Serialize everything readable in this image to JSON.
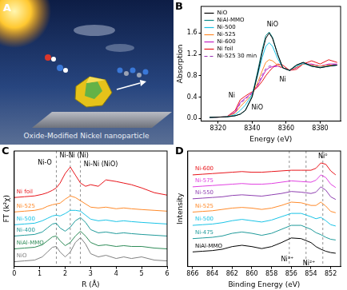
{
  "panel_a": {
    "title": "A",
    "caption": "Oxide-Modified Nickel nanoparticle"
  },
  "chart_data": [
    {
      "type": "line",
      "title": "B",
      "x_label": "Energy (eV)",
      "y_label": "Absorption",
      "x": [
        8315,
        8325,
        8330,
        8333,
        8336,
        8340,
        8343,
        8346,
        8348,
        8350,
        8352,
        8355,
        8358,
        8362,
        8366,
        8370,
        8375,
        8380,
        8385,
        8390
      ],
      "series": [
        {
          "name": "NiO",
          "color": "#000000",
          "line_style": "solid",
          "values": [
            0.02,
            0.03,
            0.05,
            0.08,
            0.15,
            0.4,
            0.8,
            1.25,
            1.5,
            1.6,
            1.5,
            1.2,
            0.95,
            0.9,
            1.0,
            1.05,
            0.98,
            0.95,
            0.98,
            1.0
          ]
        },
        {
          "name": "NiAl-MMO",
          "color": "#0f8c8c",
          "line_style": "solid",
          "values": [
            0.02,
            0.03,
            0.05,
            0.08,
            0.15,
            0.42,
            0.85,
            1.3,
            1.55,
            1.62,
            1.52,
            1.2,
            0.95,
            0.9,
            1.0,
            1.05,
            0.98,
            0.95,
            0.98,
            1.0
          ]
        },
        {
          "name": "Ni-500",
          "color": "#19c3e6",
          "line_style": "solid",
          "values": [
            0.02,
            0.03,
            0.07,
            0.15,
            0.25,
            0.45,
            0.78,
            1.15,
            1.35,
            1.42,
            1.35,
            1.12,
            0.95,
            0.9,
            0.98,
            1.03,
            0.98,
            0.96,
            0.98,
            1.0
          ]
        },
        {
          "name": "Ni-525",
          "color": "#ff8a2a",
          "line_style": "solid",
          "values": [
            0.02,
            0.03,
            0.1,
            0.22,
            0.32,
            0.45,
            0.65,
            0.9,
            1.05,
            1.1,
            1.08,
            1.0,
            0.95,
            0.9,
            0.96,
            1.02,
            1.0,
            0.98,
            1.0,
            1.0
          ]
        },
        {
          "name": "Ni-600",
          "color": "#c21fc2",
          "line_style": "solid",
          "values": [
            0.02,
            0.03,
            0.12,
            0.3,
            0.38,
            0.48,
            0.6,
            0.78,
            0.9,
            0.95,
            0.97,
            0.98,
            0.95,
            0.9,
            0.95,
            1.02,
            1.02,
            0.98,
            1.02,
            1.02
          ]
        },
        {
          "name": "Ni foil",
          "color": "#e8141a",
          "line_style": "solid",
          "values": [
            0.02,
            0.03,
            0.15,
            0.35,
            0.42,
            0.5,
            0.58,
            0.7,
            0.8,
            0.88,
            0.95,
            1.02,
            1.0,
            0.9,
            0.92,
            1.02,
            1.08,
            1.02,
            1.1,
            1.05
          ]
        },
        {
          "name": "Ni-525 30 min",
          "color": "#9a2fb4",
          "line_style": "dashed",
          "values": [
            0.02,
            0.03,
            0.11,
            0.28,
            0.36,
            0.47,
            0.62,
            0.82,
            0.93,
            0.98,
            0.98,
            0.98,
            0.95,
            0.9,
            0.95,
            1.02,
            1.01,
            0.98,
            1.01,
            1.01
          ]
        }
      ],
      "xlim": [
        8310,
        8392
      ],
      "xticks": [
        8320,
        8340,
        8360,
        8380
      ],
      "ylim": [
        -0.05,
        2.1
      ],
      "yticks": [
        {
          "value": 0,
          "label": "0.0"
        },
        {
          "value": 0.4,
          "label": "0.4"
        },
        {
          "value": 0.8,
          "label": "0.8"
        },
        {
          "value": 1.2,
          "label": "1.2"
        },
        {
          "value": 1.6,
          "label": "1.6"
        }
      ],
      "legend": "upper left",
      "annotations": [
        {
          "text": "NiO",
          "x": 8352,
          "y": 1.75
        },
        {
          "text": "Ni",
          "x": 8358,
          "y": 0.72
        },
        {
          "text": "Ni",
          "x": 8328,
          "y": 0.42
        },
        {
          "text": "NiO",
          "x": 8343,
          "y": 0.2
        }
      ]
    },
    {
      "type": "line",
      "title": "C",
      "x_label": "R (Å)",
      "y_label": "FT (k²χ)",
      "x": [
        0,
        0.4,
        0.8,
        1.1,
        1.3,
        1.5,
        1.65,
        1.8,
        2.0,
        2.2,
        2.4,
        2.6,
        2.8,
        3.0,
        3.3,
        3.6,
        4.0,
        4.3,
        4.6,
        5.0,
        5.5,
        6.0
      ],
      "series": [
        {
          "name": "Ni foil",
          "color": "#e8141a",
          "line_style": "solid",
          "values": [
            4.3,
            4.35,
            4.4,
            4.5,
            4.6,
            4.75,
            4.9,
            5.2,
            5.8,
            6.2,
            5.7,
            5.2,
            5.0,
            5.1,
            5.0,
            5.4,
            5.3,
            5.2,
            5.1,
            4.9,
            4.6,
            4.45
          ]
        },
        {
          "name": "Ni-525",
          "color": "#ff8a2a",
          "line_style": "solid",
          "values": [
            3.4,
            3.45,
            3.5,
            3.6,
            3.75,
            3.85,
            3.9,
            3.95,
            4.2,
            4.4,
            4.3,
            4.1,
            3.9,
            3.7,
            3.65,
            3.7,
            3.6,
            3.65,
            3.6,
            3.55,
            3.5,
            3.45
          ]
        },
        {
          "name": "Ni-500",
          "color": "#19c3e6",
          "line_style": "solid",
          "values": [
            2.6,
            2.65,
            2.7,
            2.85,
            3.0,
            3.15,
            3.2,
            3.15,
            3.3,
            3.5,
            3.5,
            3.45,
            3.2,
            2.95,
            2.85,
            2.9,
            2.8,
            2.85,
            2.8,
            2.75,
            2.7,
            2.65
          ]
        },
        {
          "name": "Ni-400",
          "color": "#1f9a9a",
          "line_style": "solid",
          "values": [
            1.9,
            1.95,
            2.0,
            2.15,
            2.4,
            2.65,
            2.7,
            2.4,
            2.2,
            2.45,
            2.85,
            3.05,
            2.75,
            2.3,
            2.1,
            2.15,
            2.05,
            2.1,
            2.05,
            2.0,
            1.95,
            1.9
          ]
        },
        {
          "name": "NiAl-MMO",
          "color": "#2e8b57",
          "line_style": "solid",
          "values": [
            1.1,
            1.15,
            1.2,
            1.35,
            1.6,
            1.85,
            1.9,
            1.6,
            1.3,
            1.5,
            1.9,
            2.2,
            1.9,
            1.5,
            1.3,
            1.35,
            1.25,
            1.3,
            1.25,
            1.25,
            1.15,
            1.1
          ]
        },
        {
          "name": "NiO",
          "color": "#808080",
          "line_style": "solid",
          "values": [
            0.3,
            0.35,
            0.4,
            0.6,
            0.9,
            1.2,
            1.25,
            0.9,
            0.6,
            0.9,
            1.5,
            1.8,
            1.4,
            0.8,
            0.6,
            0.7,
            0.5,
            0.6,
            0.5,
            0.6,
            0.4,
            0.35
          ]
        }
      ],
      "xlim": [
        0,
        6
      ],
      "xticks": [
        0,
        1,
        2,
        3,
        4,
        5,
        6
      ],
      "ylim": [
        0,
        7.2
      ],
      "tick_labels": "x",
      "legend": "inline",
      "vlines": [
        1.65,
        2.2,
        2.6
      ],
      "annotations": [
        {
          "text": "Ni-O",
          "x": 1.2,
          "y": 6.45
        },
        {
          "text": "Ni-Ni (Ni)",
          "x": 2.35,
          "y": 6.9
        },
        {
          "text": "Ni-Ni (NiO)",
          "x": 3.4,
          "y": 6.35
        }
      ]
    },
    {
      "type": "line",
      "title": "D",
      "x_label": "Binding Energy (eV)",
      "y_label": "Intensity",
      "x": [
        866,
        865,
        864,
        863,
        862,
        861,
        860,
        859,
        858,
        857,
        856,
        855,
        854,
        853.5,
        853,
        852.5,
        852,
        851.5
      ],
      "series": [
        {
          "name": "Ni-600",
          "color": "#e8141a",
          "line_style": "solid",
          "values": [
            6.1,
            6.15,
            6.2,
            6.25,
            6.3,
            6.35,
            6.3,
            6.3,
            6.35,
            6.4,
            6.45,
            6.45,
            6.45,
            6.6,
            7.0,
            6.9,
            6.4,
            6.1
          ]
        },
        {
          "name": "Ni-575",
          "color": "#e040e0",
          "line_style": "solid",
          "values": [
            5.2,
            5.25,
            5.3,
            5.35,
            5.4,
            5.45,
            5.4,
            5.4,
            5.45,
            5.55,
            5.65,
            5.6,
            5.55,
            5.7,
            6.1,
            5.9,
            5.4,
            5.15
          ]
        },
        {
          "name": "Ni-550",
          "color": "#8e3fb0",
          "line_style": "solid",
          "values": [
            4.3,
            4.35,
            4.4,
            4.45,
            4.55,
            4.6,
            4.55,
            4.5,
            4.6,
            4.7,
            4.85,
            4.8,
            4.7,
            4.8,
            5.2,
            4.95,
            4.45,
            4.25
          ]
        },
        {
          "name": "Ni-525",
          "color": "#ff8a2a",
          "line_style": "solid",
          "values": [
            3.3,
            3.35,
            3.4,
            3.5,
            3.6,
            3.65,
            3.6,
            3.5,
            3.6,
            3.8,
            4.05,
            4.0,
            3.8,
            3.8,
            4.05,
            3.75,
            3.35,
            3.25
          ]
        },
        {
          "name": "Ni-500",
          "color": "#19c3e6",
          "line_style": "solid",
          "values": [
            2.3,
            2.35,
            2.4,
            2.5,
            2.65,
            2.75,
            2.65,
            2.55,
            2.7,
            2.95,
            3.2,
            3.2,
            2.95,
            2.8,
            2.9,
            2.65,
            2.35,
            2.25
          ]
        },
        {
          "name": "Ni-475",
          "color": "#1f9a9a",
          "line_style": "solid",
          "values": [
            1.3,
            1.35,
            1.4,
            1.5,
            1.7,
            1.8,
            1.7,
            1.55,
            1.7,
            2.0,
            2.3,
            2.3,
            2.0,
            1.75,
            1.6,
            1.4,
            1.25,
            1.2
          ]
        },
        {
          "name": "NiAl-MMO",
          "color": "#000000",
          "line_style": "solid",
          "values": [
            0.3,
            0.35,
            0.4,
            0.5,
            0.7,
            0.8,
            0.7,
            0.55,
            0.7,
            1.0,
            1.35,
            1.3,
            1.0,
            0.7,
            0.5,
            0.35,
            0.25,
            0.2
          ]
        }
      ],
      "xlim": [
        866.5,
        851
      ],
      "xticks": [
        866,
        864,
        862,
        860,
        858,
        856,
        854,
        852
      ],
      "ylim": [
        -0.8,
        7.9
      ],
      "tick_labels": "x",
      "legend": "inline",
      "vlines": [
        852.8,
        854.5,
        856.2
      ],
      "annotations": [
        {
          "text": "Ni⁰",
          "x": 852.8,
          "y": 7.5
        },
        {
          "text": "Ni³⁺",
          "x": 856.4,
          "y": -0.25
        },
        {
          "text": "Ni²⁺",
          "x": 854.2,
          "y": -0.55
        }
      ]
    }
  ]
}
